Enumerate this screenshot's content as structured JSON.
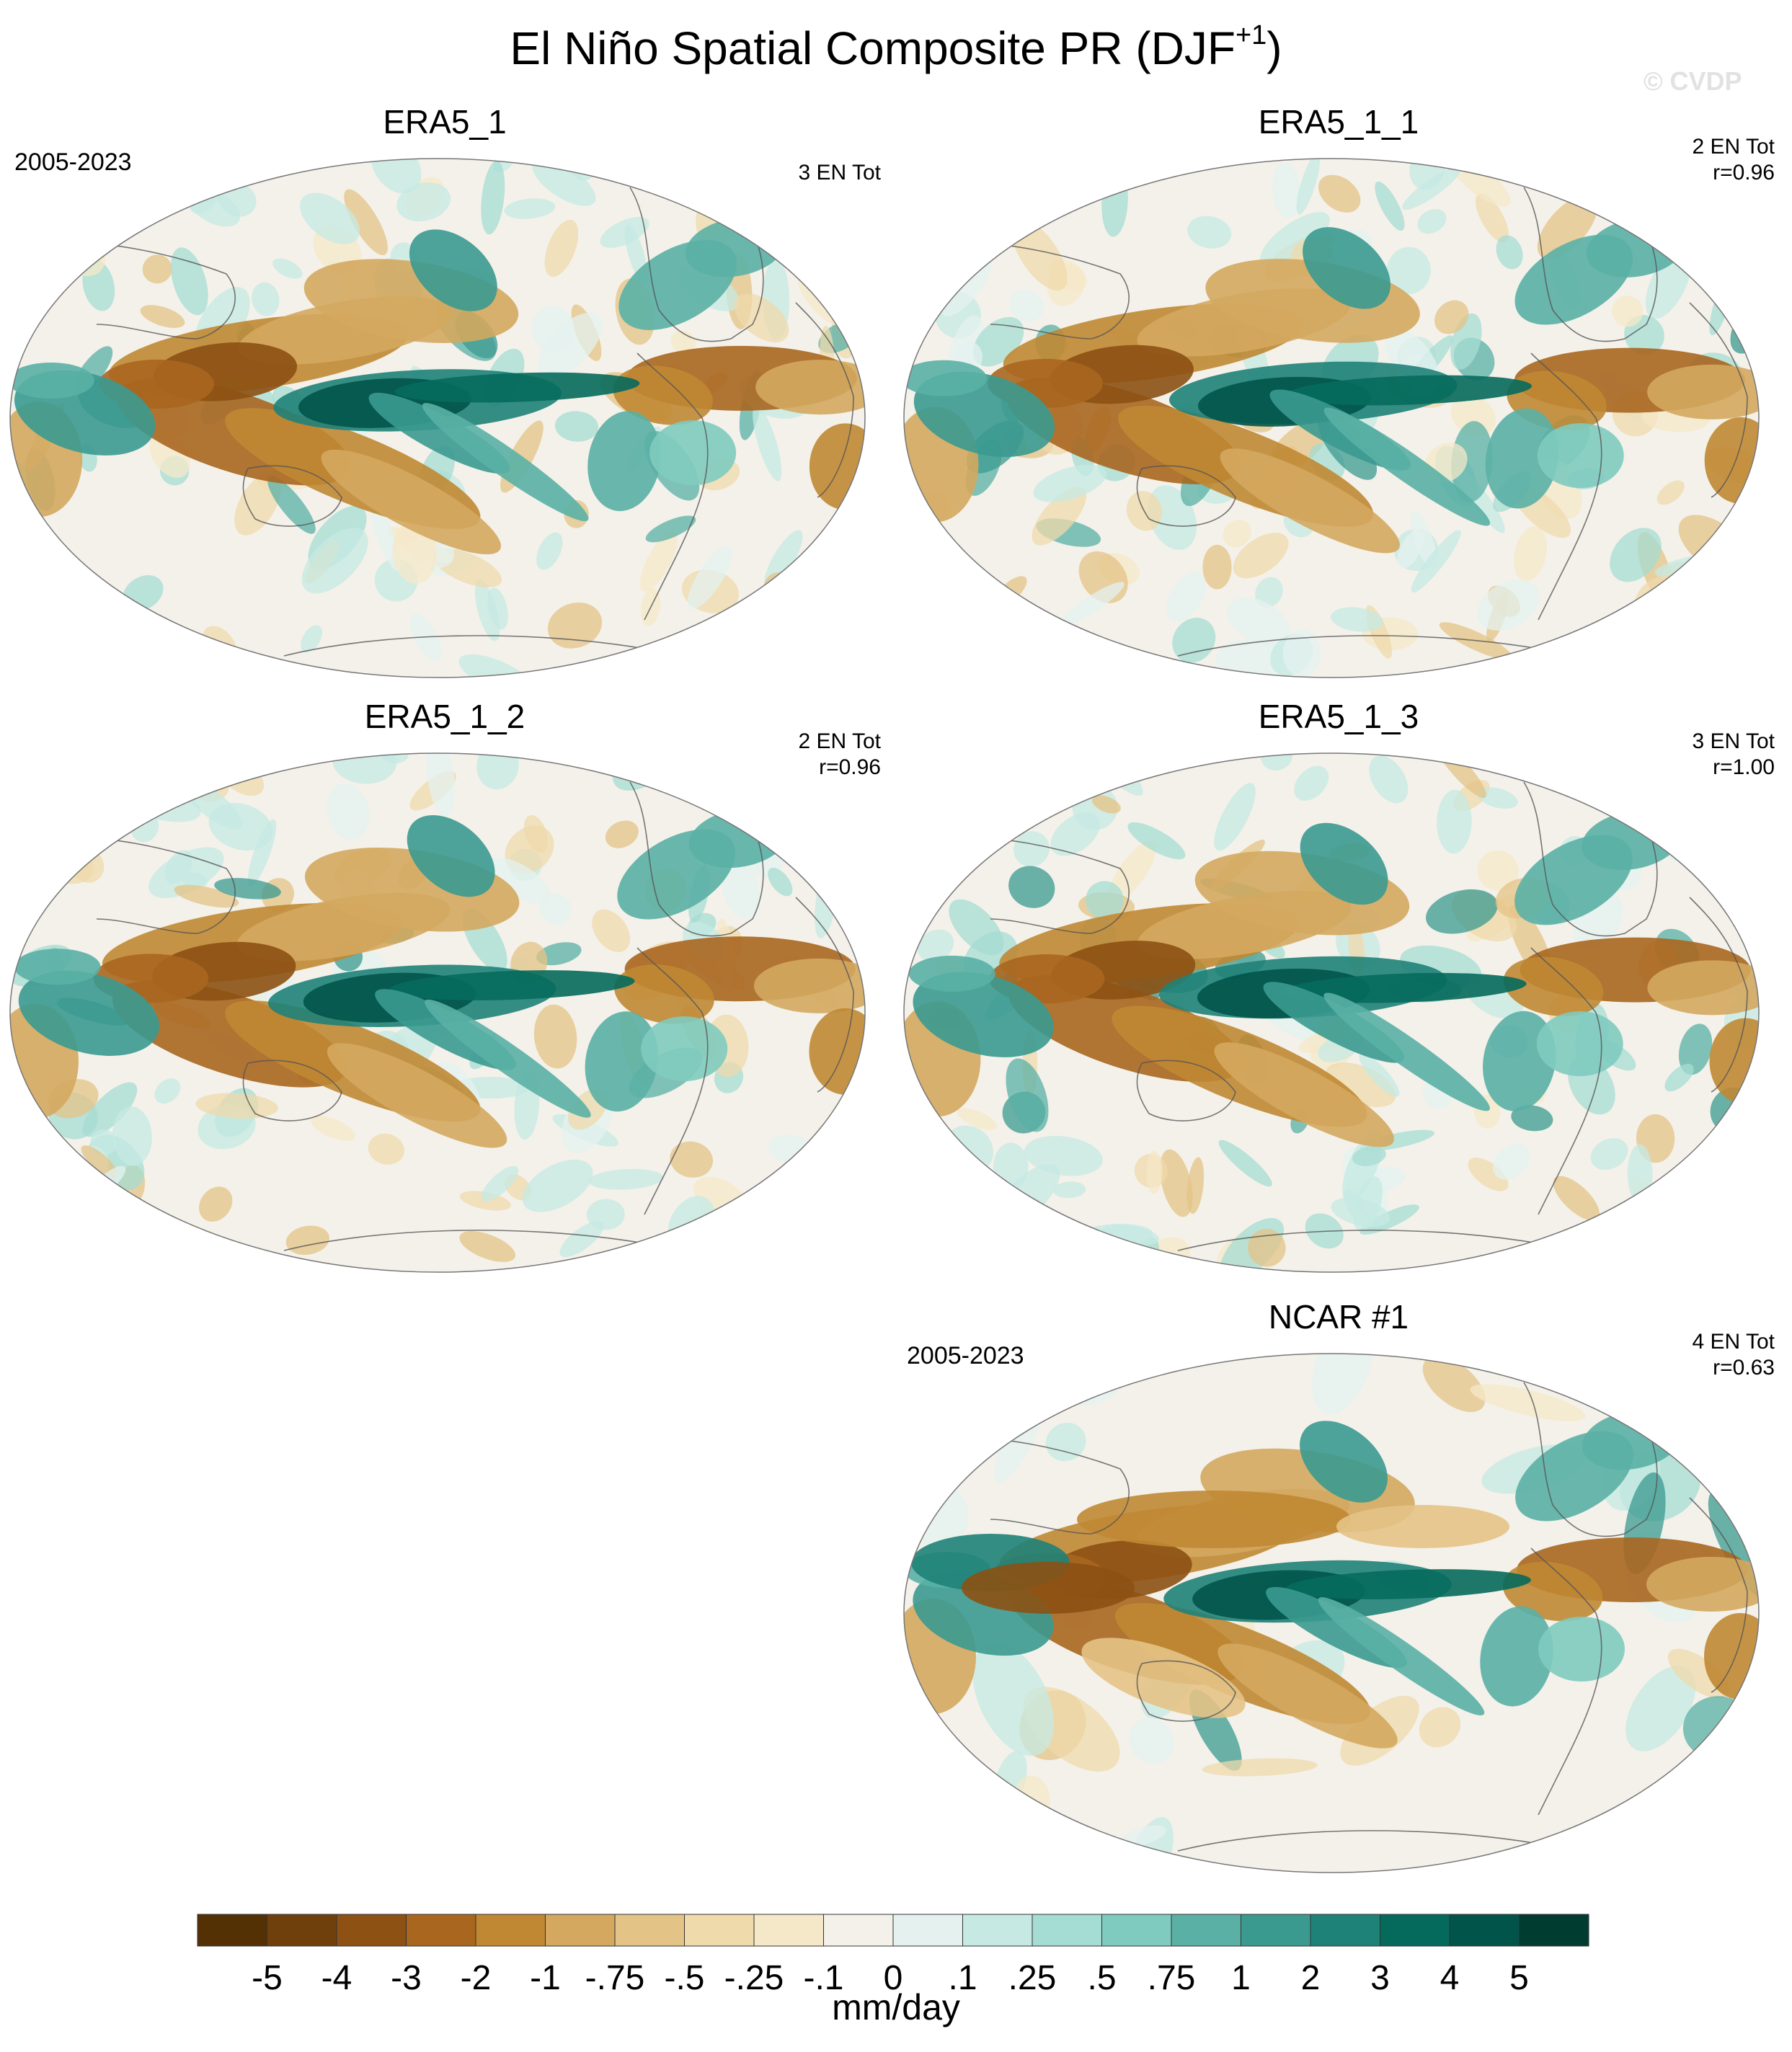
{
  "title": "El Niño Spatial Composite PR (DJF",
  "title_superscript": "+1",
  "title_close": ")",
  "watermark": "© CVDP",
  "panels": [
    {
      "title": "ERA5_1",
      "period": "2005-2023",
      "count": "3 EN Tot",
      "corr": "",
      "variant": 0
    },
    {
      "title": "ERA5_1_1",
      "period": "",
      "count": "2 EN Tot",
      "corr": "r=0.96",
      "variant": 1
    },
    {
      "title": "ERA5_1_2",
      "period": "",
      "count": "2 EN Tot",
      "corr": "r=0.96",
      "variant": 2
    },
    {
      "title": "ERA5_1_3",
      "period": "",
      "count": "3 EN Tot",
      "corr": "r=1.00",
      "variant": 3
    },
    {
      "title": "NCAR #1",
      "period": "2005-2023",
      "count": "4 EN Tot",
      "corr": "r=0.63",
      "variant": 4
    }
  ],
  "colorbar": {
    "labels": [
      "-5",
      "-4",
      "-3",
      "-2",
      "-1",
      "-.75",
      "-.5",
      "-.25",
      "-.1",
      "0",
      ".1",
      ".25",
      ".5",
      ".75",
      "1",
      "2",
      "3",
      "4",
      "5"
    ],
    "colors": [
      "#543005",
      "#70400c",
      "#8c5113",
      "#a8661f",
      "#c08833",
      "#d4a85f",
      "#e4c386",
      "#efdaab",
      "#f5e8c8",
      "#f4f1ea",
      "#e4f1ef",
      "#c6eae3",
      "#a5dcd3",
      "#7fcbbf",
      "#5ab0a5",
      "#3b9a90",
      "#1f8278",
      "#056a5c",
      "#01544a",
      "#003c30"
    ],
    "unit": "mm/day"
  }
}
